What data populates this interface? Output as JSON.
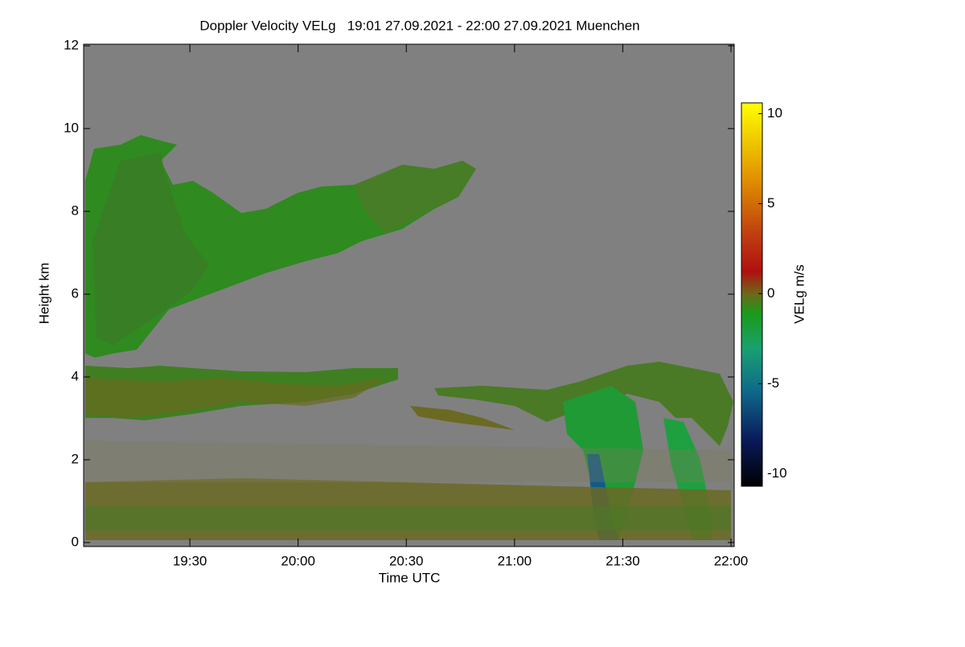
{
  "chart_data": {
    "type": "heatmap",
    "title": "Doppler Velocity VELg   19:01 27.09.2021 - 22:00 27.09.2021 Muenchen",
    "x_label": "Time UTC",
    "y_label": "Height km",
    "xlim": [
      1141,
      1320
    ],
    "xticks": [
      {
        "value": 1170,
        "label": "19:30"
      },
      {
        "value": 1200,
        "label": "20:00"
      },
      {
        "value": 1230,
        "label": "20:30"
      },
      {
        "value": 1260,
        "label": "21:00"
      },
      {
        "value": 1290,
        "label": "21:30"
      },
      {
        "value": 1320,
        "label": "22:00"
      }
    ],
    "ylim": [
      0,
      12
    ],
    "yticks": [
      0,
      2,
      4,
      6,
      8,
      10,
      12
    ],
    "colorbar": {
      "label": "VELg m/s",
      "lim": [
        -10.7,
        10.6
      ],
      "ticks": [
        -10,
        -5,
        0,
        5,
        10
      ]
    },
    "background_color": "#808080"
  }
}
